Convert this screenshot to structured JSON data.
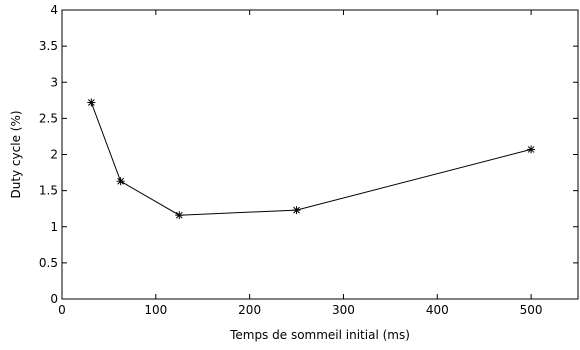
{
  "chart_data": {
    "type": "line",
    "title": "",
    "xlabel": "Temps de sommeil initial (ms)",
    "ylabel": "Duty cycle (%)",
    "xlim": [
      0,
      550
    ],
    "ylim": [
      0,
      4
    ],
    "xticks": [
      0,
      100,
      200,
      300,
      400,
      500
    ],
    "yticks": [
      0,
      0.5,
      1,
      1.5,
      2,
      2.5,
      3,
      3.5,
      4
    ],
    "xtick_labels": [
      "0",
      "100",
      "200",
      "300",
      "400",
      "500"
    ],
    "ytick_labels": [
      "0",
      "0.5",
      "1",
      "1.5",
      "2",
      "2.5",
      "3",
      "3.5",
      "4"
    ],
    "grid": false,
    "legend": "none",
    "series": [
      {
        "marker": "asterisk",
        "color": "#000000",
        "x": [
          31.25,
          62.5,
          125,
          250,
          500
        ],
        "y": [
          2.72,
          1.63,
          1.16,
          1.23,
          2.07
        ]
      }
    ]
  }
}
